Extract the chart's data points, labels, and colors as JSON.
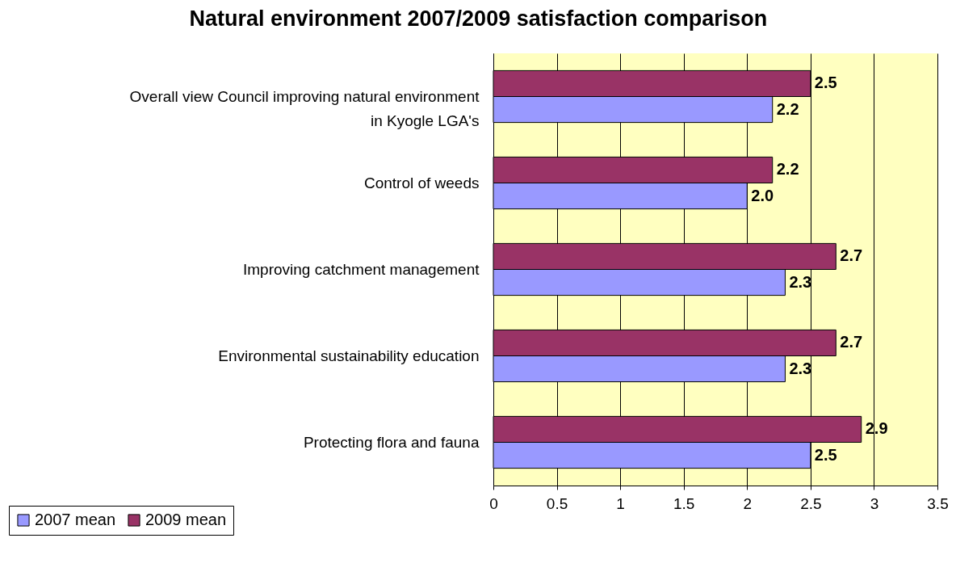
{
  "chart_data": {
    "type": "bar",
    "orientation": "horizontal",
    "title": "Natural environment 2007/2009 satisfaction comparison",
    "categories": [
      "Overall view Council improving natural environment in Kyogle LGA's",
      "Control of weeds",
      "Improving catchment management",
      "Environmental sustainability education",
      "Protecting flora and fauna"
    ],
    "series": [
      {
        "name": "2007 mean",
        "color": "#9999ff",
        "values": [
          2.2,
          2.0,
          2.3,
          2.3,
          2.5
        ],
        "value_labels": [
          "2.2",
          "2.0",
          "2.3",
          "2.3",
          "2.5"
        ]
      },
      {
        "name": "2009 mean",
        "color": "#993366",
        "values": [
          2.5,
          2.2,
          2.7,
          2.7,
          2.9
        ],
        "value_labels": [
          "2.5",
          "2.2",
          "2.7",
          "2.7",
          "2.9"
        ]
      }
    ],
    "xlim": [
      0,
      3.5
    ],
    "xticks": [
      0,
      0.5,
      1,
      1.5,
      2,
      2.5,
      3,
      3.5
    ],
    "grid": "x",
    "legend": "bottom left"
  }
}
